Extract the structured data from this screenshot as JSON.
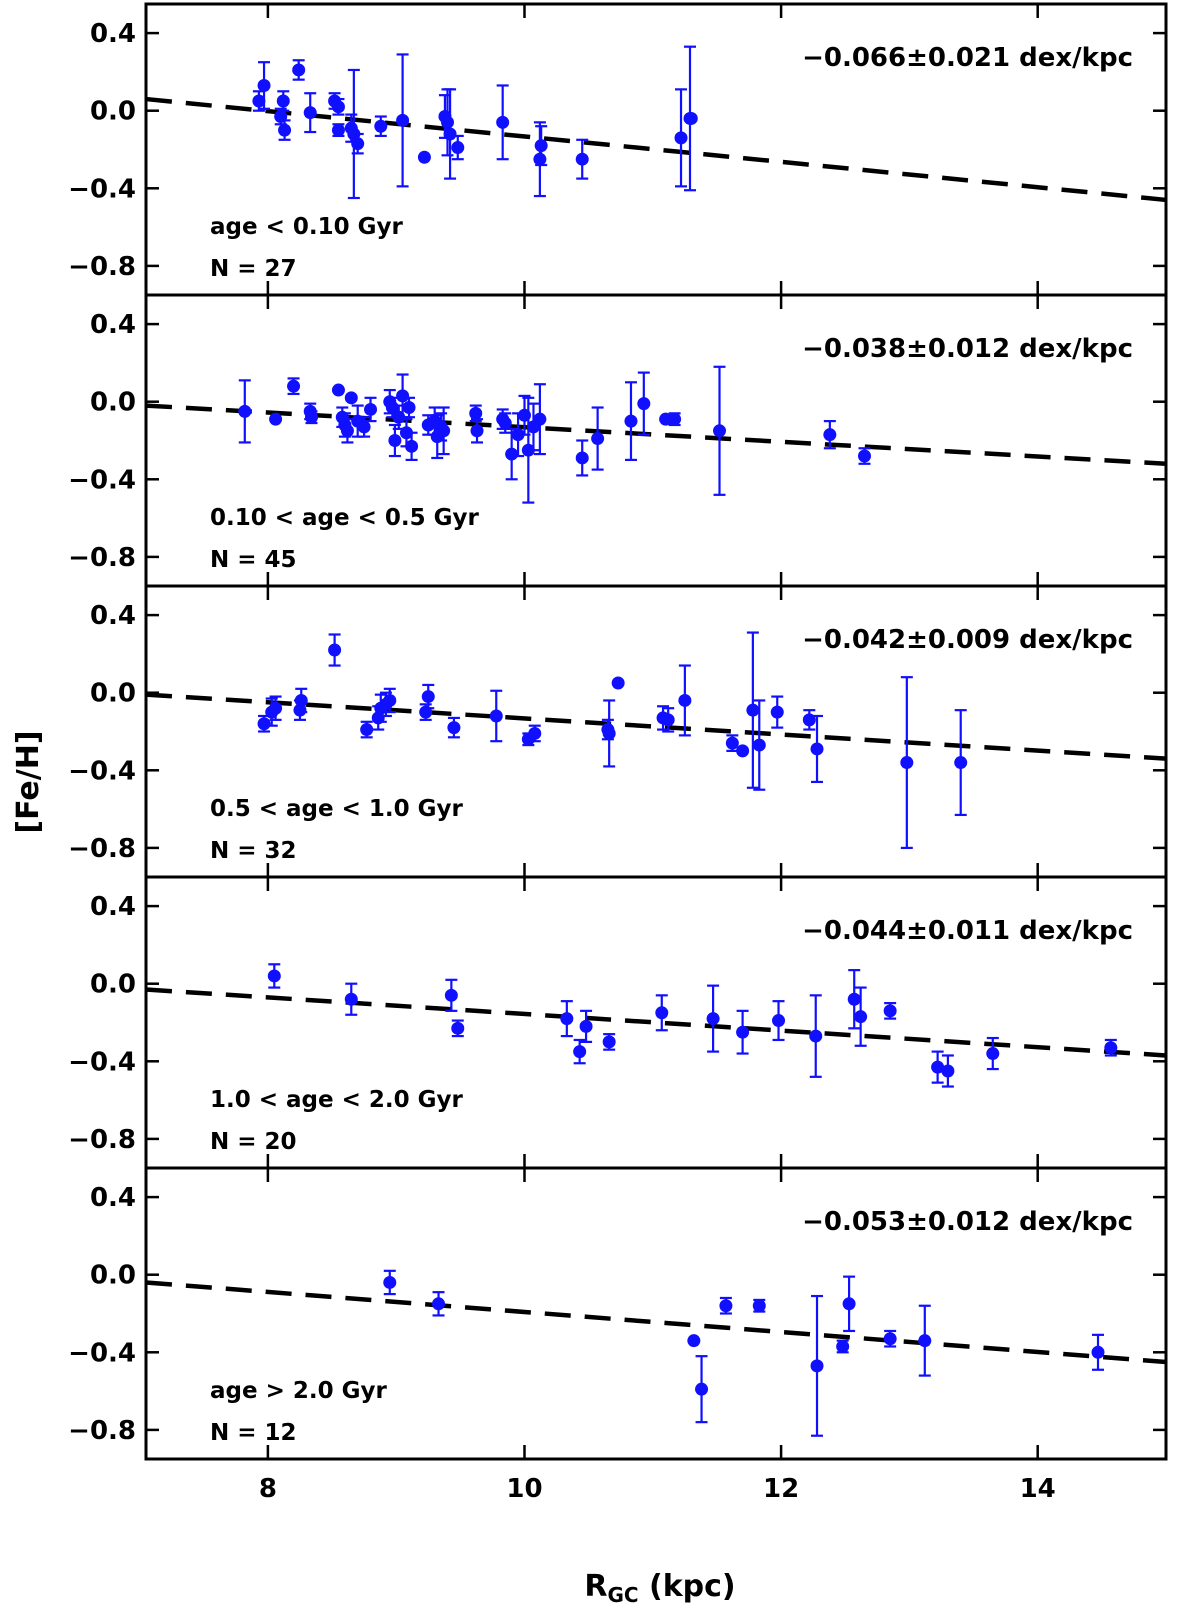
{
  "chart_data": {
    "type": "scatter",
    "xlabel_main": "R",
    "xlabel_sub": "GC",
    "xlabel_unit": " (kpc)",
    "ylabel": "[Fe/H]",
    "xlim": [
      7.05,
      15.0
    ],
    "ylim": [
      -0.95,
      0.55
    ],
    "x_ticks": [
      8,
      10,
      12,
      14
    ],
    "x_tick_labels": [
      "8",
      "10",
      "12",
      "14"
    ],
    "y_ticks": [
      0.4,
      0.0,
      -0.4,
      -0.8
    ],
    "y_tick_labels": [
      "0.4",
      "0.0",
      "−0.4",
      "−0.8"
    ],
    "colors": {
      "points": "#1010ff",
      "fit": "#000000",
      "frame": "#000000"
    },
    "panels": [
      {
        "slope_label": "−0.066±0.021 dex/kpc",
        "age_label": "age < 0.10 Gyr",
        "n_label": "N = 27",
        "fit": {
          "x0": 7.05,
          "y0": 0.06,
          "x1": 15.0,
          "y1": -0.46
        },
        "points": [
          {
            "x": 7.93,
            "y": 0.05,
            "err": 0.05
          },
          {
            "x": 7.97,
            "y": 0.13,
            "err": 0.12
          },
          {
            "x": 8.1,
            "y": -0.03,
            "err": 0.04
          },
          {
            "x": 8.12,
            "y": 0.05,
            "err": 0.05
          },
          {
            "x": 8.13,
            "y": -0.1,
            "err": 0.05
          },
          {
            "x": 8.24,
            "y": 0.21,
            "err": 0.05
          },
          {
            "x": 8.33,
            "y": -0.01,
            "err": 0.1
          },
          {
            "x": 8.52,
            "y": 0.05,
            "err": 0.04
          },
          {
            "x": 8.55,
            "y": 0.02,
            "err": 0.04
          },
          {
            "x": 8.55,
            "y": -0.1,
            "err": 0.03
          },
          {
            "x": 8.65,
            "y": -0.09,
            "err": 0.07
          },
          {
            "x": 8.67,
            "y": -0.12,
            "err": 0.33
          },
          {
            "x": 8.7,
            "y": -0.17,
            "err": 0.05
          },
          {
            "x": 8.88,
            "y": -0.08,
            "err": 0.05
          },
          {
            "x": 9.05,
            "y": -0.05,
            "err": 0.34
          },
          {
            "x": 9.22,
            "y": -0.24,
            "err": 0.0
          },
          {
            "x": 9.38,
            "y": -0.03,
            "err": 0.11
          },
          {
            "x": 9.4,
            "y": -0.06,
            "err": 0.17
          },
          {
            "x": 9.42,
            "y": -0.12,
            "err": 0.23
          },
          {
            "x": 9.48,
            "y": -0.19,
            "err": 0.06
          },
          {
            "x": 9.83,
            "y": -0.06,
            "err": 0.19
          },
          {
            "x": 10.12,
            "y": -0.25,
            "err": 0.19
          },
          {
            "x": 10.13,
            "y": -0.18,
            "err": 0.1
          },
          {
            "x": 10.45,
            "y": -0.25,
            "err": 0.1
          },
          {
            "x": 11.22,
            "y": -0.14,
            "err": 0.25
          },
          {
            "x": 11.29,
            "y": -0.04,
            "err": 0.37
          },
          {
            "x": 11.3,
            "y": -0.04,
            "err": 0.0
          }
        ]
      },
      {
        "slope_label": "−0.038±0.012 dex/kpc",
        "age_label": "0.10 < age < 0.5 Gyr",
        "n_label": "N = 45",
        "fit": {
          "x0": 7.05,
          "y0": -0.02,
          "x1": 15.0,
          "y1": -0.32
        },
        "points": [
          {
            "x": 7.82,
            "y": -0.05,
            "err": 0.16
          },
          {
            "x": 8.06,
            "y": -0.09,
            "err": 0.0
          },
          {
            "x": 8.2,
            "y": 0.08,
            "err": 0.04
          },
          {
            "x": 8.33,
            "y": -0.05,
            "err": 0.04
          },
          {
            "x": 8.34,
            "y": -0.08,
            "err": 0.03
          },
          {
            "x": 8.55,
            "y": 0.06,
            "err": 0.0
          },
          {
            "x": 8.58,
            "y": -0.08,
            "err": 0.05
          },
          {
            "x": 8.6,
            "y": -0.12,
            "err": 0.06
          },
          {
            "x": 8.62,
            "y": -0.15,
            "err": 0.06
          },
          {
            "x": 8.65,
            "y": 0.02,
            "err": 0.0
          },
          {
            "x": 8.7,
            "y": -0.1,
            "err": 0.08
          },
          {
            "x": 8.75,
            "y": -0.13,
            "err": 0.05
          },
          {
            "x": 8.8,
            "y": -0.04,
            "err": 0.06
          },
          {
            "x": 8.95,
            "y": 0.0,
            "err": 0.06
          },
          {
            "x": 8.97,
            "y": -0.03,
            "err": 0.05
          },
          {
            "x": 8.99,
            "y": -0.2,
            "err": 0.08
          },
          {
            "x": 9.02,
            "y": -0.08,
            "err": 0.06
          },
          {
            "x": 9.05,
            "y": 0.03,
            "err": 0.11
          },
          {
            "x": 9.08,
            "y": -0.16,
            "err": 0.07
          },
          {
            "x": 9.1,
            "y": -0.03,
            "err": 0.05
          },
          {
            "x": 9.12,
            "y": -0.23,
            "err": 0.07
          },
          {
            "x": 9.25,
            "y": -0.12,
            "err": 0.05
          },
          {
            "x": 9.3,
            "y": -0.1,
            "err": 0.07
          },
          {
            "x": 9.32,
            "y": -0.18,
            "err": 0.11
          },
          {
            "x": 9.35,
            "y": -0.13,
            "err": 0.07
          },
          {
            "x": 9.37,
            "y": -0.15,
            "err": 0.12
          },
          {
            "x": 9.62,
            "y": -0.06,
            "err": 0.04
          },
          {
            "x": 9.63,
            "y": -0.15,
            "err": 0.06
          },
          {
            "x": 9.83,
            "y": -0.09,
            "err": 0.05
          },
          {
            "x": 9.85,
            "y": -0.11,
            "err": 0.05
          },
          {
            "x": 9.9,
            "y": -0.27,
            "err": 0.13
          },
          {
            "x": 9.95,
            "y": -0.17,
            "err": 0.11
          },
          {
            "x": 10.0,
            "y": -0.07,
            "err": 0.1
          },
          {
            "x": 10.03,
            "y": -0.25,
            "err": 0.27
          },
          {
            "x": 10.07,
            "y": -0.13,
            "err": 0.12
          },
          {
            "x": 10.12,
            "y": -0.09,
            "err": 0.18
          },
          {
            "x": 10.45,
            "y": -0.29,
            "err": 0.09
          },
          {
            "x": 10.57,
            "y": -0.19,
            "err": 0.16
          },
          {
            "x": 10.83,
            "y": -0.1,
            "err": 0.2
          },
          {
            "x": 10.93,
            "y": -0.01,
            "err": 0.16
          },
          {
            "x": 11.17,
            "y": -0.09,
            "err": 0.03
          },
          {
            "x": 11.52,
            "y": -0.15,
            "err": 0.33
          },
          {
            "x": 12.38,
            "y": -0.17,
            "err": 0.07
          },
          {
            "x": 12.65,
            "y": -0.28,
            "err": 0.04
          },
          {
            "x": 11.1,
            "y": -0.09,
            "err": 0.0
          }
        ]
      },
      {
        "slope_label": "−0.042±0.009 dex/kpc",
        "age_label": "0.5 < age < 1.0 Gyr",
        "n_label": "N = 32",
        "fit": {
          "x0": 7.05,
          "y0": -0.01,
          "x1": 15.0,
          "y1": -0.34
        },
        "points": [
          {
            "x": 7.97,
            "y": -0.16,
            "err": 0.04
          },
          {
            "x": 8.03,
            "y": -0.1,
            "err": 0.07
          },
          {
            "x": 8.06,
            "y": -0.08,
            "err": 0.06
          },
          {
            "x": 8.25,
            "y": -0.09,
            "err": 0.05
          },
          {
            "x": 8.26,
            "y": -0.04,
            "err": 0.06
          },
          {
            "x": 8.52,
            "y": 0.22,
            "err": 0.08
          },
          {
            "x": 8.77,
            "y": -0.19,
            "err": 0.04
          },
          {
            "x": 8.86,
            "y": -0.13,
            "err": 0.06
          },
          {
            "x": 8.88,
            "y": -0.08,
            "err": 0.07
          },
          {
            "x": 8.92,
            "y": -0.06,
            "err": 0.06
          },
          {
            "x": 8.95,
            "y": -0.04,
            "err": 0.06
          },
          {
            "x": 9.23,
            "y": -0.1,
            "err": 0.04
          },
          {
            "x": 9.25,
            "y": -0.02,
            "err": 0.06
          },
          {
            "x": 9.45,
            "y": -0.18,
            "err": 0.05
          },
          {
            "x": 9.78,
            "y": -0.12,
            "err": 0.13
          },
          {
            "x": 10.03,
            "y": -0.24,
            "err": 0.03
          },
          {
            "x": 10.08,
            "y": -0.21,
            "err": 0.04
          },
          {
            "x": 10.65,
            "y": -0.19,
            "err": 0.05
          },
          {
            "x": 10.66,
            "y": -0.21,
            "err": 0.17
          },
          {
            "x": 10.73,
            "y": 0.05,
            "err": 0.0
          },
          {
            "x": 11.08,
            "y": -0.13,
            "err": 0.06
          },
          {
            "x": 11.12,
            "y": -0.14,
            "err": 0.06
          },
          {
            "x": 11.25,
            "y": -0.04,
            "err": 0.18
          },
          {
            "x": 11.62,
            "y": -0.26,
            "err": 0.04
          },
          {
            "x": 11.7,
            "y": -0.3,
            "err": 0.0
          },
          {
            "x": 11.78,
            "y": -0.09,
            "err": 0.4
          },
          {
            "x": 11.83,
            "y": -0.27,
            "err": 0.23
          },
          {
            "x": 11.97,
            "y": -0.1,
            "err": 0.08
          },
          {
            "x": 12.22,
            "y": -0.14,
            "err": 0.05
          },
          {
            "x": 12.28,
            "y": -0.29,
            "err": 0.17
          },
          {
            "x": 12.98,
            "y": -0.36,
            "err": 0.44
          },
          {
            "x": 13.4,
            "y": -0.36,
            "err": 0.27
          }
        ]
      },
      {
        "slope_label": "−0.044±0.011 dex/kpc",
        "age_label": "1.0 < age < 2.0 Gyr",
        "n_label": "N = 20",
        "fit": {
          "x0": 7.05,
          "y0": -0.03,
          "x1": 15.0,
          "y1": -0.37
        },
        "points": [
          {
            "x": 8.05,
            "y": 0.04,
            "err": 0.06
          },
          {
            "x": 8.65,
            "y": -0.08,
            "err": 0.08
          },
          {
            "x": 9.43,
            "y": -0.06,
            "err": 0.08
          },
          {
            "x": 9.48,
            "y": -0.23,
            "err": 0.04
          },
          {
            "x": 10.33,
            "y": -0.18,
            "err": 0.09
          },
          {
            "x": 10.43,
            "y": -0.35,
            "err": 0.06
          },
          {
            "x": 10.48,
            "y": -0.22,
            "err": 0.08
          },
          {
            "x": 10.66,
            "y": -0.3,
            "err": 0.04
          },
          {
            "x": 11.07,
            "y": -0.15,
            "err": 0.09
          },
          {
            "x": 11.47,
            "y": -0.18,
            "err": 0.17
          },
          {
            "x": 11.7,
            "y": -0.25,
            "err": 0.11
          },
          {
            "x": 11.98,
            "y": -0.19,
            "err": 0.1
          },
          {
            "x": 12.27,
            "y": -0.27,
            "err": 0.21
          },
          {
            "x": 12.57,
            "y": -0.08,
            "err": 0.15
          },
          {
            "x": 12.62,
            "y": -0.17,
            "err": 0.15
          },
          {
            "x": 12.85,
            "y": -0.14,
            "err": 0.04
          },
          {
            "x": 13.22,
            "y": -0.43,
            "err": 0.08
          },
          {
            "x": 13.3,
            "y": -0.45,
            "err": 0.08
          },
          {
            "x": 13.65,
            "y": -0.36,
            "err": 0.08
          },
          {
            "x": 14.57,
            "y": -0.33,
            "err": 0.04
          }
        ]
      },
      {
        "slope_label": "−0.053±0.012 dex/kpc",
        "age_label": "age > 2.0 Gyr",
        "n_label": "N = 12",
        "fit": {
          "x0": 7.05,
          "y0": -0.04,
          "x1": 15.0,
          "y1": -0.45
        },
        "points": [
          {
            "x": 8.95,
            "y": -0.04,
            "err": 0.06
          },
          {
            "x": 9.33,
            "y": -0.15,
            "err": 0.06
          },
          {
            "x": 11.32,
            "y": -0.34,
            "err": 0.0
          },
          {
            "x": 11.38,
            "y": -0.59,
            "err": 0.17
          },
          {
            "x": 11.57,
            "y": -0.16,
            "err": 0.04
          },
          {
            "x": 11.83,
            "y": -0.16,
            "err": 0.03
          },
          {
            "x": 12.28,
            "y": -0.47,
            "err": 0.36
          },
          {
            "x": 12.48,
            "y": -0.37,
            "err": 0.03
          },
          {
            "x": 12.53,
            "y": -0.15,
            "err": 0.14
          },
          {
            "x": 12.85,
            "y": -0.33,
            "err": 0.04
          },
          {
            "x": 13.12,
            "y": -0.34,
            "err": 0.18
          },
          {
            "x": 14.47,
            "y": -0.4,
            "err": 0.09
          }
        ]
      }
    ]
  }
}
